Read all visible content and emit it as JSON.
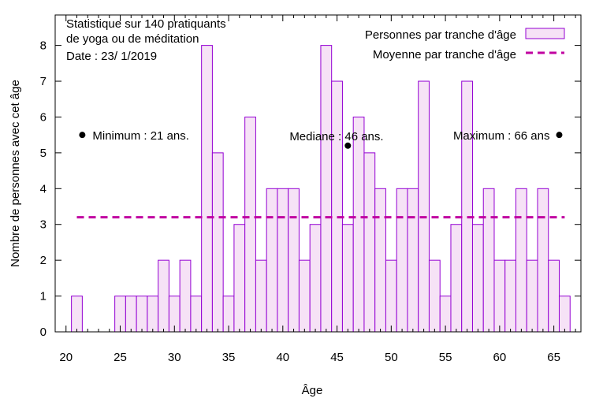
{
  "chart_data": {
    "type": "bar",
    "title_lines": [
      "Statistique sur 140 pratiquants",
      "de yoga ou de méditation",
      "Date : 23/ 1/2019"
    ],
    "xlabel": "Âge",
    "ylabel": "Nombre de personnes avec cet âge",
    "xlim": [
      19,
      67.5
    ],
    "ylim": [
      0,
      8.85
    ],
    "xticks": [
      20,
      25,
      30,
      35,
      40,
      45,
      50,
      55,
      60,
      65
    ],
    "yticks": [
      0,
      1,
      2,
      3,
      4,
      5,
      6,
      7,
      8
    ],
    "grid": false,
    "legend_position": "top-right",
    "bar_color": "#f6e2f6",
    "edge_color": "#9400d3",
    "mean_color": "#c000a0",
    "x": [
      21,
      25,
      26,
      27,
      28,
      29,
      30,
      31,
      32,
      33,
      34,
      35,
      36,
      37,
      38,
      39,
      40,
      41,
      42,
      43,
      44,
      45,
      46,
      47,
      48,
      49,
      50,
      51,
      52,
      53,
      54,
      55,
      56,
      57,
      58,
      59,
      60,
      61,
      62,
      63,
      64,
      65,
      66
    ],
    "values": [
      1,
      1,
      1,
      1,
      1,
      2,
      1,
      2,
      1,
      8,
      5,
      1,
      3,
      6,
      2,
      4,
      4,
      4,
      2,
      3,
      8,
      7,
      3,
      6,
      5,
      4,
      2,
      4,
      4,
      7,
      2,
      1,
      3,
      7,
      3,
      4,
      2,
      2,
      4,
      2,
      4,
      2,
      1
    ],
    "series": [
      {
        "name": "Personnes par tranche d'âge",
        "kind": "bar"
      },
      {
        "name": "Moyenne par tranche d'âge",
        "kind": "dashed-line",
        "value": 3.2,
        "x_range": [
          21,
          66
        ]
      }
    ],
    "annotations": [
      {
        "text": "Minimum : 21 ans.",
        "x": 21.5,
        "y": 5.5
      },
      {
        "text": "Mediane :  46 ans.",
        "x": 46,
        "y": 5.2
      },
      {
        "text": "Maximum : 66 ans",
        "x": 65.5,
        "y": 5.5
      }
    ]
  }
}
